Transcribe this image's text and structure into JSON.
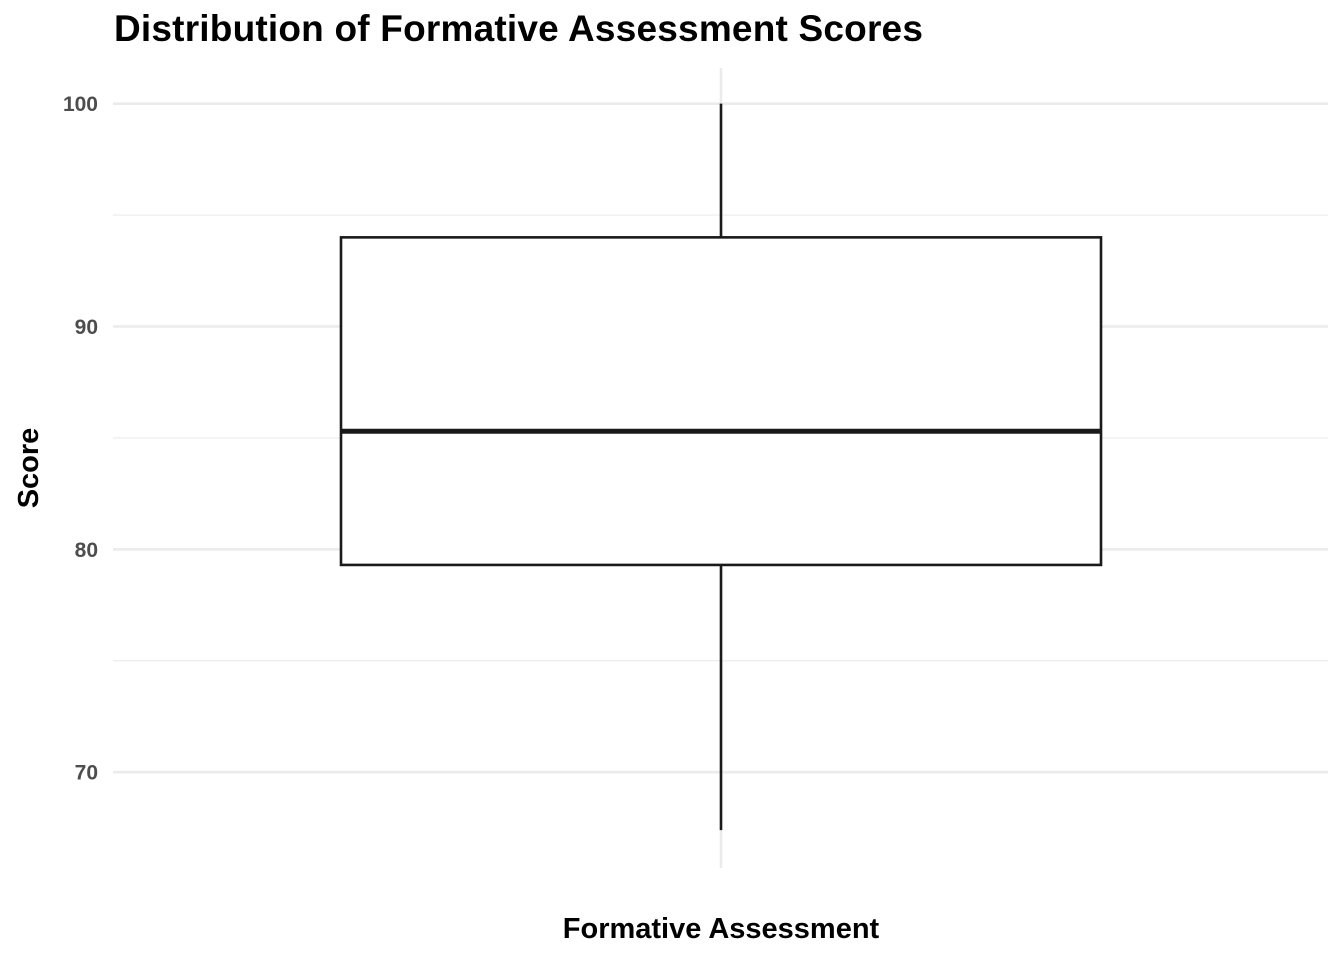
{
  "chart_data": {
    "type": "box",
    "title": "Distribution of Formative Assessment Scores",
    "xlabel": "Formative Assessment",
    "ylabel": "Score",
    "ylim": [
      65.7,
      101.6
    ],
    "y_ticks": [
      70,
      80,
      90,
      100
    ],
    "y_minor_ticks": [
      75,
      85,
      95
    ],
    "grid": true,
    "categories": [
      "Formative Assessment"
    ],
    "box": {
      "whisker_low": 67.4,
      "q1": 79.3,
      "median": 85.3,
      "q3": 94.0,
      "whisker_high": 100
    },
    "colors": {
      "box_fill": "#ffffff",
      "box_stroke": "#1a1a1a",
      "grid_major": "#ebebeb",
      "grid_minor": "#ebebeb",
      "tick_text": "#4d4d4d"
    }
  }
}
